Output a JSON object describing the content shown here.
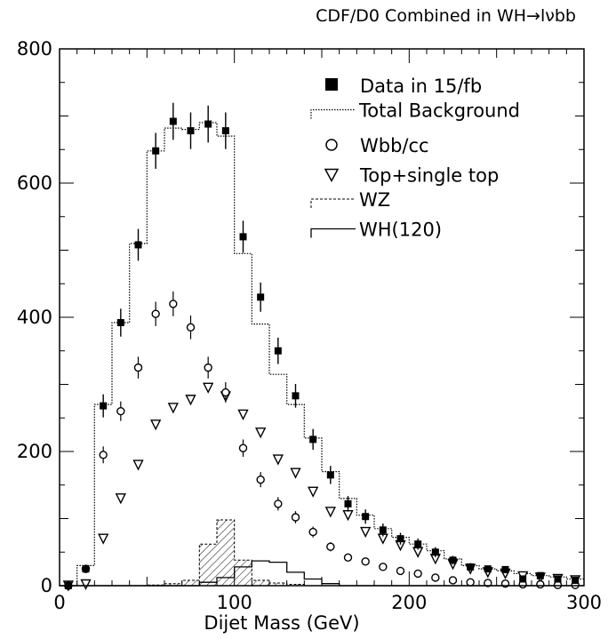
{
  "chart_data": {
    "type": "histogram",
    "title": "CDF/D0 Combined in WH→lνbb",
    "xlabel": "Dijet Mass (GeV)",
    "ylabel": "",
    "xlim": [
      0,
      300
    ],
    "ylim": [
      0,
      800
    ],
    "x_ticks": [
      "0",
      "100",
      "200",
      "300"
    ],
    "y_ticks": [
      "0",
      "200",
      "400",
      "600",
      "800"
    ],
    "x_centers": [
      5,
      15,
      25,
      35,
      45,
      55,
      65,
      75,
      85,
      95,
      105,
      115,
      125,
      135,
      145,
      155,
      165,
      175,
      185,
      195,
      205,
      215,
      225,
      235,
      245,
      255,
      265,
      275,
      285,
      295
    ],
    "legend_entries": [
      "Data in 15/fb",
      "Total Background",
      "Wbb/cc",
      "Top+single top",
      "WZ",
      "WH(120)"
    ],
    "series": [
      {
        "name": "Data in 15/fb",
        "style": "points-filled-square-errorbar",
        "values": [
          0,
          25,
          268,
          392,
          508,
          648,
          692,
          678,
          688,
          678,
          520,
          430,
          350,
          283,
          218,
          165,
          122,
          103,
          83,
          70,
          62,
          50,
          38,
          28,
          25,
          24,
          10,
          15,
          10,
          8
        ]
      },
      {
        "name": "Total Background",
        "style": "histogram-dotted",
        "values": [
          0,
          30,
          270,
          392,
          510,
          648,
          682,
          680,
          690,
          670,
          495,
          390,
          315,
          270,
          220,
          170,
          130,
          105,
          85,
          72,
          62,
          52,
          40,
          30,
          25,
          22,
          18,
          15,
          13,
          10
        ]
      },
      {
        "name": "Wbb/cc",
        "style": "points-open-circle",
        "values": [
          0,
          25,
          195,
          260,
          325,
          405,
          420,
          385,
          325,
          288,
          205,
          158,
          122,
          102,
          80,
          58,
          42,
          36,
          28,
          22,
          18,
          12,
          8,
          5,
          4,
          3,
          2,
          2,
          1,
          1
        ]
      },
      {
        "name": "Top+single top",
        "style": "points-open-triangle",
        "values": [
          0,
          2,
          70,
          130,
          180,
          240,
          265,
          277,
          295,
          282,
          255,
          228,
          188,
          168,
          140,
          110,
          105,
          80,
          70,
          60,
          50,
          40,
          32,
          25,
          20,
          18,
          14,
          12,
          10,
          8
        ]
      },
      {
        "name": "WZ",
        "style": "histogram-dashed-hatched",
        "values": [
          0,
          0,
          0,
          0,
          0,
          1,
          3,
          8,
          62,
          98,
          38,
          8,
          4,
          2,
          0,
          0,
          0,
          0,
          0,
          0,
          0,
          0,
          0,
          0,
          0,
          0,
          0,
          0,
          0,
          0
        ]
      },
      {
        "name": "WH(120)",
        "style": "histogram-solid",
        "values": [
          0,
          0,
          0,
          0,
          0,
          0,
          0,
          0,
          5,
          12,
          28,
          37,
          35,
          20,
          10,
          3,
          0,
          0,
          0,
          0,
          0,
          0,
          0,
          0,
          0,
          0,
          0,
          0,
          0,
          0
        ]
      }
    ]
  }
}
